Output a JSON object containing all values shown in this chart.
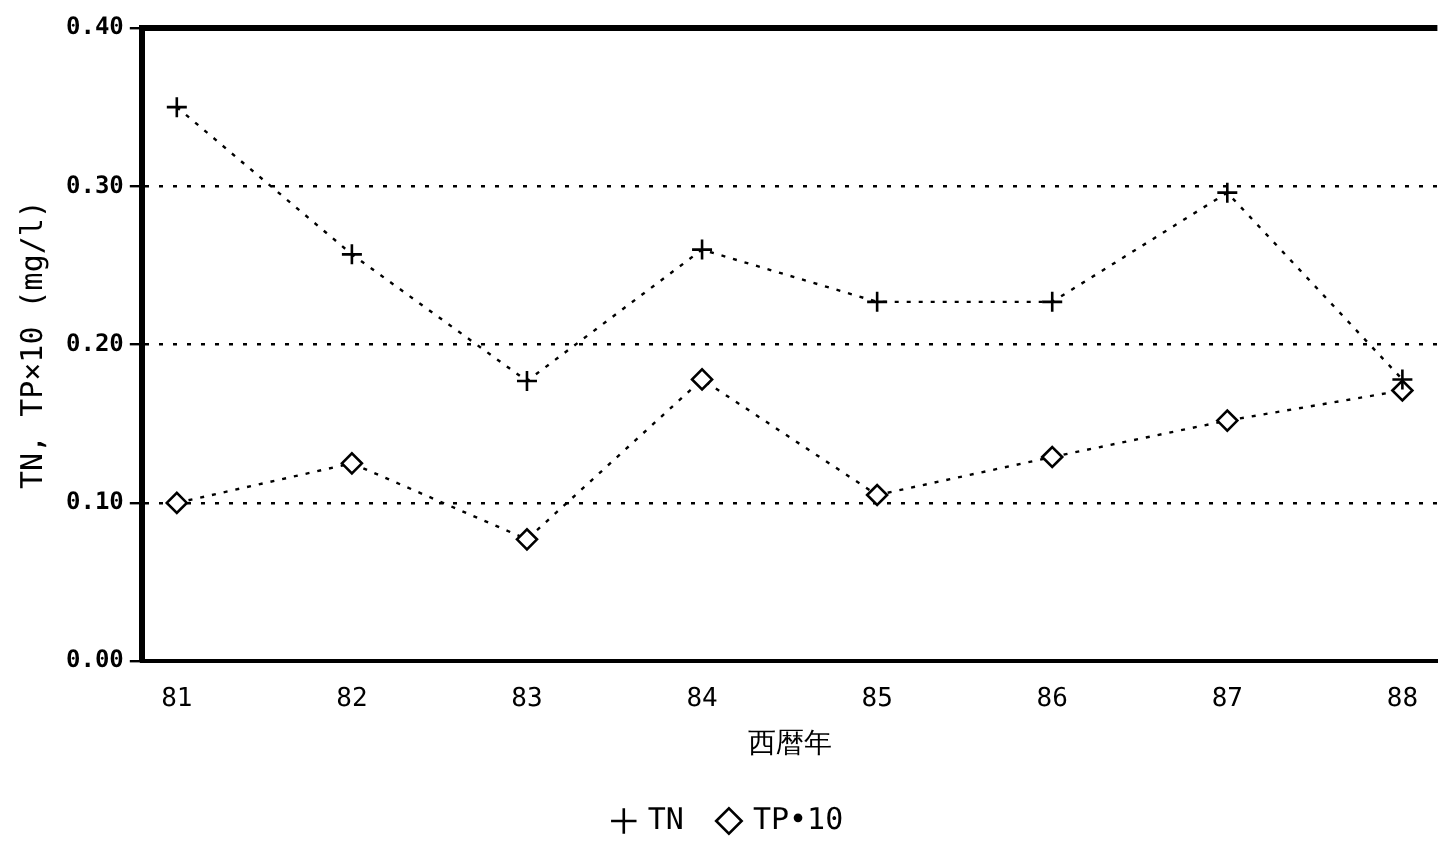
{
  "chart_data": {
    "type": "line",
    "xlabel": "西暦年",
    "ylabel": "TN, TP×10 (mg/l)",
    "x": [
      81,
      82,
      83,
      84,
      85,
      86,
      87,
      88
    ],
    "xlim": [
      80.8,
      88.2
    ],
    "xticks": [
      81,
      82,
      83,
      84,
      85,
      86,
      87,
      88
    ],
    "ylim": [
      0,
      0.4
    ],
    "yticks": [
      {
        "value": 0,
        "label": "0.00"
      },
      {
        "value": 0.1,
        "label": "0.10"
      },
      {
        "value": 0.2,
        "label": "0.20"
      },
      {
        "value": 0.3,
        "label": "0.30"
      },
      {
        "value": 0.4,
        "label": "0.40"
      }
    ],
    "grid": "y",
    "legend": "bottom",
    "line_style": "dotted",
    "series": [
      {
        "name": "TN",
        "color": "#000000",
        "marker": "cross",
        "values": [
          0.35,
          0.257,
          0.177,
          0.26,
          0.227,
          0.227,
          0.296,
          0.178
        ]
      },
      {
        "name": "TP•10",
        "color": "#000000",
        "marker": "diamond",
        "values": [
          0.1,
          0.125,
          0.077,
          0.178,
          0.105,
          0.129,
          0.152,
          0.171
        ]
      }
    ]
  }
}
